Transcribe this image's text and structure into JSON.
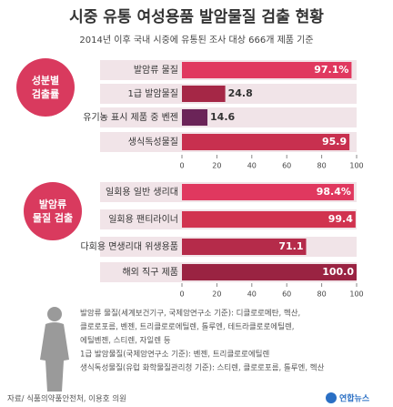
{
  "header": {
    "title": "시중 유통 여성용품 발암물질 검출 현황",
    "subtitle": "2014년 이후 국내 시중에 유통된 조사 대상 666개 제품 기준"
  },
  "chart_data": [
    {
      "type": "bar",
      "label": [
        "성분별",
        "검출률"
      ],
      "categories": [
        "발암류 물질",
        "1급 발암물질",
        "유기농 표시 제품 중 벤젠",
        "생식독성물질"
      ],
      "values": [
        97.1,
        24.8,
        14.6,
        95.9
      ],
      "value_labels": [
        "97.1%",
        "24.8",
        "14.6",
        "95.9"
      ],
      "colors": [
        "#e0385f",
        "#a52746",
        "#6b2458",
        "#c8304f"
      ],
      "xlim": [
        0,
        100
      ],
      "xticks": [
        0,
        20,
        40,
        60,
        80,
        100
      ]
    },
    {
      "type": "bar",
      "label": [
        "발암류",
        "물질 검출"
      ],
      "categories": [
        "일회용 일반 생리대",
        "일회용 팬티라이너",
        "다회용 면생리대 위생용품",
        "해외 직구 제품"
      ],
      "values": [
        98.4,
        99.4,
        71.1,
        100.0
      ],
      "value_labels": [
        "98.4%",
        "99.4",
        "71.1",
        "100.0"
      ],
      "colors": [
        "#e0385f",
        "#d1334f",
        "#b52b4a",
        "#9a2342"
      ],
      "xlim": [
        0,
        100
      ],
      "xticks": [
        0,
        20,
        40,
        60,
        80,
        100
      ]
    }
  ],
  "notes": [
    "발암류 물질(세계보건기구, 국제암연구소 기준): 디클로로메탄, 헥산,",
    "클로로포름, 벤젠, 트리클로로에틸렌, 톨루엔, 테트라클로로에틸렌,",
    "에틸벤젠, 스티렌, 자일렌 등",
    "1급 발암물질(국제암연구소 기준): 벤젠, 트리클로로에틸렌",
    "생식독성물질(유럽 화학물질관리청 기준): 스티렌, 클로로포름, 톨루엔, 헥산"
  ],
  "source": "자료/ 식품의약품안전처, 이용호 의원",
  "credit": "연합뉴스"
}
